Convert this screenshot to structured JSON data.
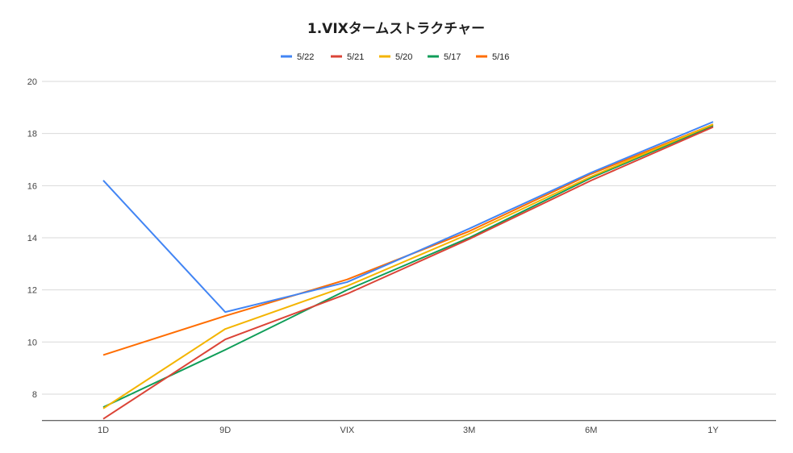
{
  "chart_data": {
    "type": "line",
    "title": "1.VIXタームストラクチャー",
    "xlabel": "",
    "ylabel": "",
    "categories": [
      "1D",
      "9D",
      "VIX",
      "3M",
      "6M",
      "1Y"
    ],
    "ylim": [
      7,
      20
    ],
    "yticks": [
      8,
      10,
      12,
      14,
      16,
      18,
      20
    ],
    "grid": true,
    "legend_position": "top",
    "series": [
      {
        "name": "5/22",
        "color": "#4285f4",
        "values": [
          16.2,
          11.15,
          12.3,
          14.35,
          16.5,
          18.45
        ]
      },
      {
        "name": "5/21",
        "color": "#db4437",
        "values": [
          7.05,
          10.1,
          11.85,
          13.95,
          16.2,
          18.25
        ]
      },
      {
        "name": "5/20",
        "color": "#f4b400",
        "values": [
          7.45,
          10.5,
          12.15,
          14.15,
          16.35,
          18.35
        ]
      },
      {
        "name": "5/17",
        "color": "#0f9d58",
        "values": [
          7.5,
          9.7,
          12.0,
          14.0,
          16.3,
          18.3
        ]
      },
      {
        "name": "5/16",
        "color": "#ff6d01",
        "values": [
          9.5,
          11.0,
          12.4,
          14.25,
          16.45,
          18.35
        ]
      }
    ]
  }
}
